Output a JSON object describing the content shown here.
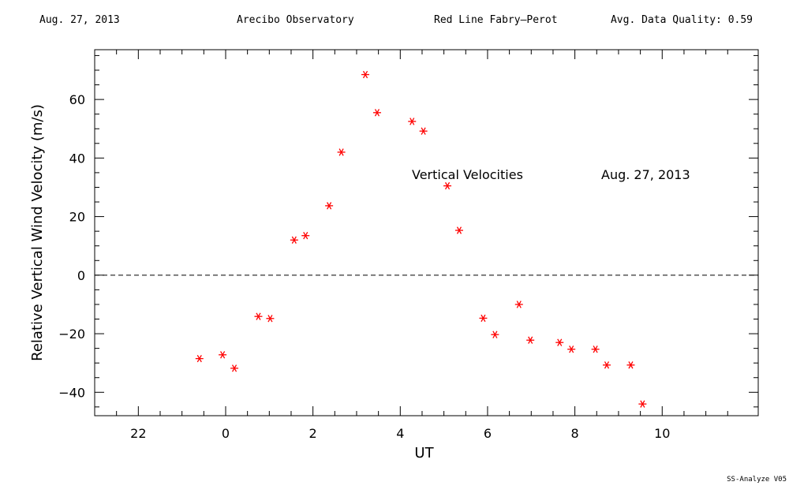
{
  "header": {
    "date": "Aug. 27, 2013",
    "observatory": "Arecibo Observatory",
    "instrument": "Red Line Fabry–Perot",
    "quality": "Avg. Data Quality: 0.59"
  },
  "footer": "SS-Analyze V05",
  "chart_data": {
    "type": "scatter",
    "title": "",
    "xlabel": "UT",
    "ylabel": "Relative Vertical Wind Velocity (m/s)",
    "xlim": [
      -3,
      12.2
    ],
    "ylim": [
      -48,
      77
    ],
    "x_major_ticks": [
      -2,
      0,
      2,
      4,
      6,
      8,
      10
    ],
    "x_tick_labels": [
      "22",
      "0",
      "2",
      "4",
      "6",
      "8",
      "10"
    ],
    "y_major_ticks": [
      -40,
      -20,
      0,
      20,
      40,
      60
    ],
    "y_tick_labels": [
      "−40",
      "−20",
      "0",
      "20",
      "40",
      "60"
    ],
    "zero_line": true,
    "marker_color": "#ff0000",
    "annotations": [
      "Vertical Velocities",
      "Aug. 27, 2013"
    ],
    "series": [
      {
        "x": [
          -0.6,
          -0.07,
          0.2,
          0.75,
          1.02,
          1.57,
          1.83,
          2.37,
          2.65,
          3.2,
          3.47,
          4.27,
          4.53,
          5.08,
          5.35,
          5.9,
          6.17,
          6.72,
          6.98,
          7.65,
          7.92,
          8.47,
          8.73,
          9.28,
          9.55
        ],
        "y": [
          -28.5,
          -27.2,
          -31.8,
          -14.1,
          -14.8,
          12.0,
          13.5,
          23.7,
          42.0,
          68.5,
          55.5,
          52.5,
          49.2,
          30.5,
          15.3,
          -14.7,
          -20.3,
          -10.0,
          -22.2,
          -23.0,
          -25.3,
          -25.3,
          -30.7,
          -30.7,
          -44.0
        ]
      }
    ]
  }
}
